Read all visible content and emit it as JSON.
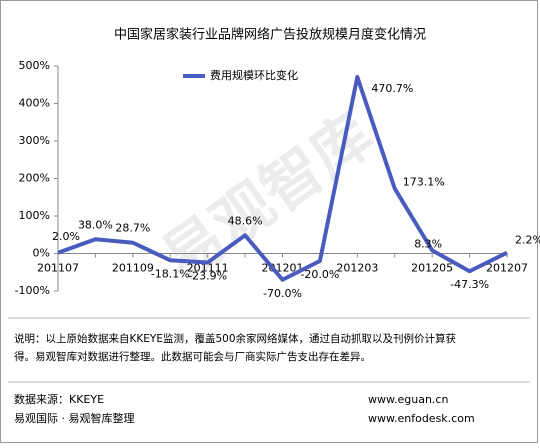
{
  "chart_data": {
    "type": "line",
    "title": "中国家居家装行业品牌网络广告投放规模月度变化情况",
    "categories": [
      "201107",
      null,
      "201109",
      null,
      "201111",
      null,
      "201201",
      null,
      "201203",
      null,
      "201205",
      null,
      "201207"
    ],
    "series": [
      {
        "name": "费用规模环比变化",
        "color": "#4a5bbf",
        "values": [
          2.0,
          38.0,
          28.7,
          -18.1,
          -23.9,
          48.6,
          -70.0,
          -20.0,
          470.7,
          173.1,
          8.3,
          -47.3,
          2.2
        ],
        "value_labels": [
          "2.0%",
          "38.0%",
          "28.7%",
          "-18.1%",
          "-23.9%",
          "48.6%",
          "-70.0%",
          "-20.0%",
          "470.7%",
          "173.1%",
          "8.3%",
          "-47.3%",
          "2.2%"
        ]
      }
    ],
    "ylim": [
      -100,
      500
    ],
    "yticks": [
      {
        "value": -100,
        "label": "-100%"
      },
      {
        "value": 0,
        "label": "0%"
      },
      {
        "value": 100,
        "label": "100%"
      },
      {
        "value": 200,
        "label": "200%"
      },
      {
        "value": 300,
        "label": "300%"
      },
      {
        "value": 400,
        "label": "400%"
      },
      {
        "value": 500,
        "label": "500%"
      }
    ],
    "grid": false,
    "legend": "top",
    "watermark": "易观智库"
  },
  "notes": [
    "说明：以上原始数据来自KKEYE监测，覆盖500余家网络媒体，通过自动抓取以及刊例价计算获",
    "得。易观智库对数据进行整理。此数据可能会与厂商实际广告支出存在差异。"
  ],
  "footer": {
    "source": "数据来源：KKEYE",
    "credit": "易观国际 · 易观智库整理",
    "site1": "www.eguan.cn",
    "site2": "www.enfodesk.com"
  }
}
